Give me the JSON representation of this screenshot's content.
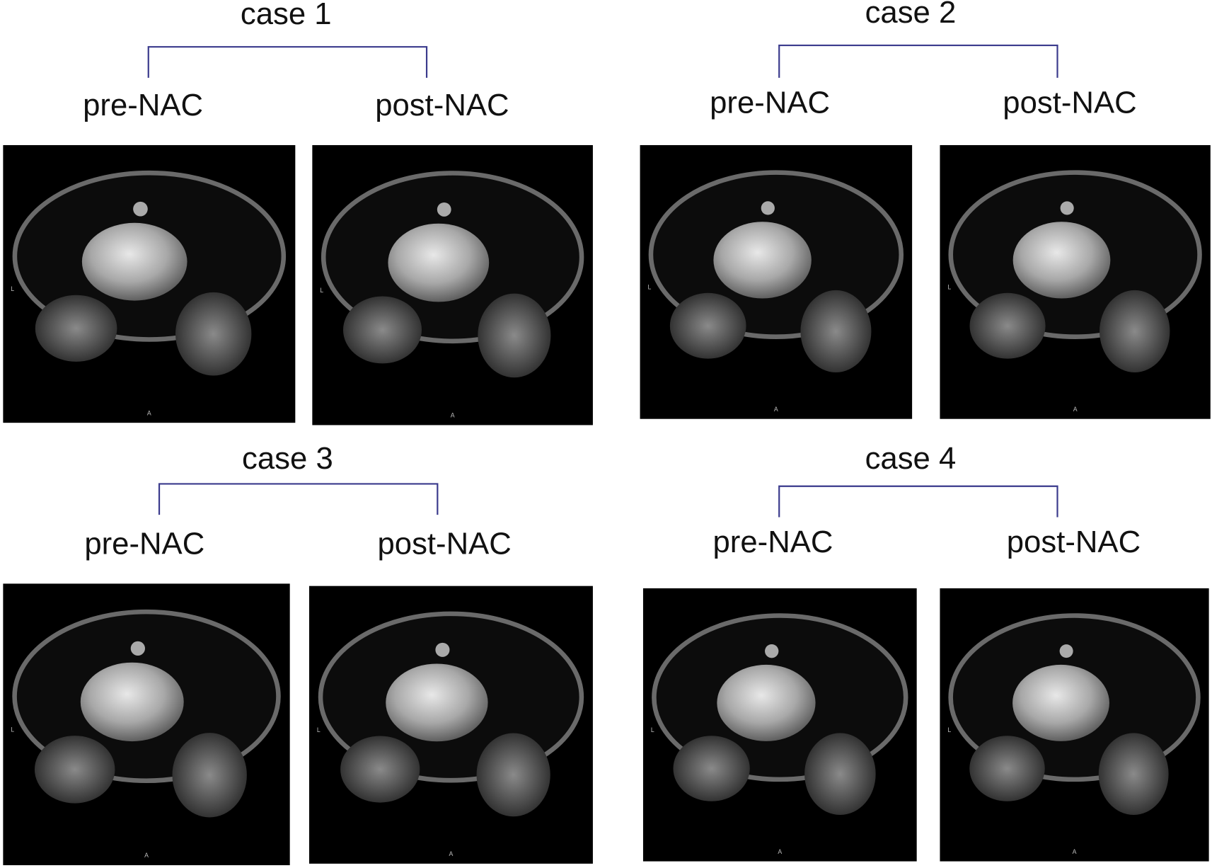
{
  "cases": [
    {
      "title": "case 1",
      "images": [
        {
          "label": "pre-NAC",
          "left_marker": "L",
          "bottom_marker": "A"
        },
        {
          "label": "post-NAC",
          "left_marker": "L",
          "bottom_marker": "A"
        }
      ]
    },
    {
      "title": "case 2",
      "images": [
        {
          "label": "pre-NAC",
          "left_marker": "L",
          "bottom_marker": "A"
        },
        {
          "label": "post-NAC",
          "left_marker": "L",
          "bottom_marker": "A"
        }
      ]
    },
    {
      "title": "case 3",
      "images": [
        {
          "label": "pre-NAC",
          "left_marker": "L",
          "bottom_marker": "A"
        },
        {
          "label": "post-NAC",
          "left_marker": "L",
          "bottom_marker": "A"
        }
      ]
    },
    {
      "title": "case 4",
      "images": [
        {
          "label": "pre-NAC",
          "left_marker": "L",
          "bottom_marker": "A"
        },
        {
          "label": "post-NAC",
          "left_marker": "L",
          "bottom_marker": "A"
        }
      ]
    }
  ]
}
